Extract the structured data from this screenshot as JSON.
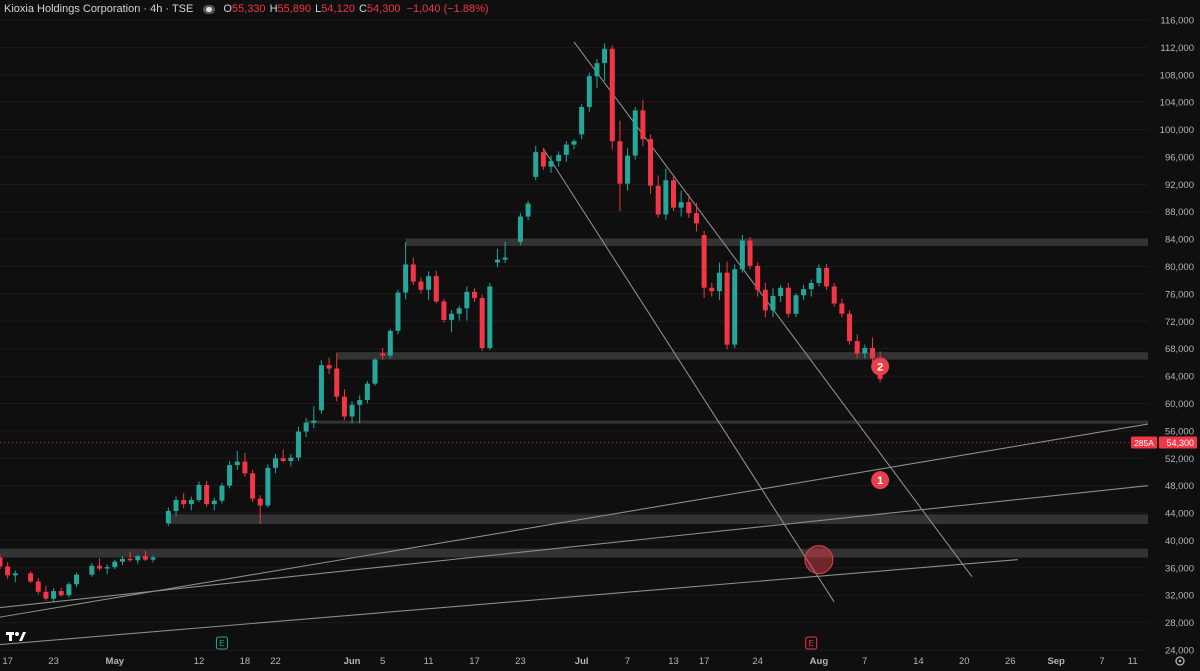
{
  "header": {
    "symbol": "Kioxia Holdings Corporation · 4h · TSE",
    "o_label": "O",
    "o_value": "55,330",
    "h_label": "H",
    "h_value": "55,890",
    "l_label": "L",
    "l_value": "54,120",
    "c_label": "C",
    "c_value": "54,300",
    "change": "−1,040 (−1.88%)"
  },
  "colors": {
    "background": "#0f0f0f",
    "up": "#26a69a",
    "down": "#f23645",
    "zone": "#3a3a3a",
    "trendline": "#8c8c8c",
    "marker": "#e8404b"
  },
  "price_tag": {
    "ticker": "285A",
    "price": "54,300"
  },
  "markers": [
    {
      "label": "2",
      "date": "2025-08-09",
      "price": 65400
    },
    {
      "label": "1",
      "date": "2025-08-09",
      "price": 48800
    }
  ],
  "logo_icon": "tradingview-logo-icon",
  "settings_icon": "gear-icon",
  "earnings_label": "E",
  "chart_data": {
    "type": "candlestick",
    "title": "Kioxia Holdings Corporation · 4h · TSE",
    "ylim": [
      24000,
      116000
    ],
    "xlim": [
      "2025-04-16",
      "2025-09-13"
    ],
    "y_ticks": [
      "24,000",
      "28,000",
      "32,000",
      "36,000",
      "40,000",
      "44,000",
      "48,000",
      "52,000",
      "56,000",
      "60,000",
      "64,000",
      "68,000",
      "72,000",
      "76,000",
      "80,000",
      "84,000",
      "88,000",
      "92,000",
      "96,000",
      "100,000",
      "104,000",
      "108,000",
      "112,000",
      "116,000"
    ],
    "x_ticks": [
      {
        "label": "17",
        "date": "2025-04-17"
      },
      {
        "label": "23",
        "date": "2025-04-23"
      },
      {
        "label": "May",
        "date": "2025-05-01"
      },
      {
        "label": "12",
        "date": "2025-05-12"
      },
      {
        "label": "18",
        "date": "2025-05-18"
      },
      {
        "label": "22",
        "date": "2025-05-22"
      },
      {
        "label": "Jun",
        "date": "2025-06-01"
      },
      {
        "label": "5",
        "date": "2025-06-05"
      },
      {
        "label": "11",
        "date": "2025-06-11"
      },
      {
        "label": "17",
        "date": "2025-06-17"
      },
      {
        "label": "23",
        "date": "2025-06-23"
      },
      {
        "label": "Jul",
        "date": "2025-07-01"
      },
      {
        "label": "7",
        "date": "2025-07-07"
      },
      {
        "label": "13",
        "date": "2025-07-13"
      },
      {
        "label": "17",
        "date": "2025-07-17"
      },
      {
        "label": "24",
        "date": "2025-07-24"
      },
      {
        "label": "Aug",
        "date": "2025-08-01"
      },
      {
        "label": "7",
        "date": "2025-08-07"
      },
      {
        "label": "14",
        "date": "2025-08-14"
      },
      {
        "label": "20",
        "date": "2025-08-20"
      },
      {
        "label": "26",
        "date": "2025-08-26"
      },
      {
        "label": "Sep",
        "date": "2025-09-01"
      },
      {
        "label": "7",
        "date": "2025-09-07"
      },
      {
        "label": "11",
        "date": "2025-09-11"
      }
    ],
    "earnings_dates": [
      "2025-05-15",
      "2025-07-31"
    ],
    "last_price": 54300,
    "candles": [
      [
        "2025-04-16",
        37500,
        38000,
        35800,
        36200
      ],
      [
        "2025-04-17",
        36200,
        36800,
        34400,
        34900
      ],
      [
        "2025-04-18",
        34900,
        35600,
        33900,
        35200
      ],
      [
        "2025-04-20",
        35200,
        35500,
        33800,
        34000
      ],
      [
        "2025-04-21",
        34000,
        34500,
        32100,
        32500
      ],
      [
        "2025-04-22",
        32500,
        33400,
        31200,
        31500
      ],
      [
        "2025-04-23",
        31500,
        33000,
        30900,
        32600
      ],
      [
        "2025-04-24",
        32600,
        33100,
        31800,
        32000
      ],
      [
        "2025-04-25",
        32000,
        33900,
        31700,
        33600
      ],
      [
        "2025-04-26",
        33600,
        35300,
        33200,
        35000
      ],
      [
        "2025-04-28",
        35000,
        36700,
        34700,
        36300
      ],
      [
        "2025-04-29",
        36300,
        37400,
        35600,
        35900
      ],
      [
        "2025-04-30",
        35900,
        36500,
        35100,
        36100
      ],
      [
        "2025-05-01",
        36100,
        37200,
        35800,
        36900
      ],
      [
        "2025-05-02",
        36900,
        37700,
        36400,
        37300
      ],
      [
        "2025-05-03",
        37300,
        38400,
        36900,
        37100
      ],
      [
        "2025-05-04",
        37100,
        37900,
        36600,
        37700
      ],
      [
        "2025-05-05",
        37700,
        38500,
        37000,
        37200
      ],
      [
        "2025-05-06",
        37200,
        37800,
        36800,
        37500
      ],
      [
        "2025-05-08",
        42500,
        44800,
        42100,
        44300
      ],
      [
        "2025-05-09",
        44300,
        46400,
        43600,
        45900
      ],
      [
        "2025-05-10",
        45900,
        46900,
        44700,
        45300
      ],
      [
        "2025-05-11",
        45300,
        46400,
        44400,
        45900
      ],
      [
        "2025-05-12",
        45900,
        48600,
        45600,
        48100
      ],
      [
        "2025-05-13",
        48100,
        48700,
        44900,
        45300
      ],
      [
        "2025-05-14",
        45300,
        46200,
        44400,
        45800
      ],
      [
        "2025-05-15",
        45800,
        48400,
        45400,
        48000
      ],
      [
        "2025-05-16",
        48000,
        51600,
        47600,
        51000
      ],
      [
        "2025-05-17",
        51000,
        53100,
        50300,
        51500
      ],
      [
        "2025-05-18",
        51500,
        52800,
        49300,
        49800
      ],
      [
        "2025-05-19",
        49800,
        50300,
        45600,
        46100
      ],
      [
        "2025-05-20",
        46100,
        46600,
        42400,
        45100
      ],
      [
        "2025-05-21",
        45100,
        51100,
        44800,
        50600
      ],
      [
        "2025-05-22",
        50600,
        52600,
        49800,
        52000
      ],
      [
        "2025-05-23",
        52000,
        53300,
        51400,
        51600
      ],
      [
        "2025-05-24",
        51600,
        52600,
        50800,
        52100
      ],
      [
        "2025-05-25",
        52100,
        56600,
        51600,
        55900
      ],
      [
        "2025-05-26",
        55900,
        57900,
        55100,
        57200
      ],
      [
        "2025-05-27",
        57200,
        59600,
        56400,
        57500
      ],
      [
        "2025-05-28",
        59000,
        66300,
        58500,
        65600
      ],
      [
        "2025-05-29",
        65600,
        66700,
        64300,
        65100
      ],
      [
        "2025-05-30",
        65100,
        67400,
        60300,
        61000
      ],
      [
        "2025-05-31",
        61000,
        62100,
        57600,
        58100
      ],
      [
        "2025-06-01",
        58100,
        60300,
        57100,
        59800
      ],
      [
        "2025-06-02",
        59800,
        61200,
        57100,
        60500
      ],
      [
        "2025-06-03",
        60500,
        63300,
        60000,
        62900
      ],
      [
        "2025-06-04",
        62900,
        66600,
        62600,
        66400
      ],
      [
        "2025-06-05",
        67300,
        68100,
        66400,
        67000
      ],
      [
        "2025-06-06",
        67000,
        70900,
        66600,
        70600
      ],
      [
        "2025-06-07",
        70600,
        76600,
        70100,
        76200
      ],
      [
        "2025-06-08",
        76200,
        83600,
        75200,
        80300
      ],
      [
        "2025-06-09",
        80300,
        81300,
        77300,
        77800
      ],
      [
        "2025-06-10",
        77800,
        78400,
        76100,
        76600
      ],
      [
        "2025-06-11",
        76600,
        79300,
        75100,
        78600
      ],
      [
        "2025-06-12",
        78600,
        79400,
        74600,
        74900
      ],
      [
        "2025-06-13",
        74900,
        75300,
        71800,
        72200
      ],
      [
        "2025-06-14",
        72200,
        73600,
        70400,
        73100
      ],
      [
        "2025-06-15",
        73100,
        74300,
        72100,
        73900
      ],
      [
        "2025-06-16",
        73900,
        77100,
        72100,
        76300
      ],
      [
        "2025-06-17",
        76300,
        76800,
        74800,
        75400
      ],
      [
        "2025-06-18",
        75400,
        75900,
        67700,
        68100
      ],
      [
        "2025-06-19",
        68100,
        77600,
        67800,
        77100
      ],
      [
        "2025-06-20",
        80600,
        82600,
        79900,
        81000
      ],
      [
        "2025-06-21",
        81000,
        83600,
        80500,
        81300
      ],
      [
        "2025-06-23",
        83600,
        87800,
        83100,
        87300
      ],
      [
        "2025-06-24",
        87300,
        89600,
        86800,
        89200
      ],
      [
        "2025-06-25",
        93100,
        97600,
        92600,
        96700
      ],
      [
        "2025-06-26",
        96700,
        97300,
        94100,
        94600
      ],
      [
        "2025-06-27",
        94600,
        96200,
        93700,
        95400
      ],
      [
        "2025-06-28",
        95400,
        96800,
        94600,
        96300
      ],
      [
        "2025-06-29",
        96300,
        98300,
        95300,
        97800
      ],
      [
        "2025-06-30",
        97800,
        98600,
        97100,
        98300
      ],
      [
        "2025-07-01",
        99300,
        103700,
        98600,
        103300
      ],
      [
        "2025-07-02",
        103300,
        108300,
        102600,
        107800
      ],
      [
        "2025-07-03",
        107800,
        110300,
        106100,
        109700
      ],
      [
        "2025-07-04",
        109700,
        112600,
        107100,
        111800
      ],
      [
        "2025-07-05",
        111800,
        112300,
        97100,
        98300
      ],
      [
        "2025-07-06",
        98300,
        101300,
        88100,
        92100
      ],
      [
        "2025-07-07",
        92100,
        97300,
        91100,
        96200
      ],
      [
        "2025-07-08",
        96200,
        103300,
        95600,
        102800
      ],
      [
        "2025-07-09",
        102800,
        104300,
        97600,
        98600
      ],
      [
        "2025-07-10",
        98600,
        99300,
        90600,
        91800
      ],
      [
        "2025-07-11",
        91800,
        93300,
        87100,
        87600
      ],
      [
        "2025-07-12",
        87600,
        94300,
        86800,
        92600
      ],
      [
        "2025-07-13",
        92600,
        93100,
        88100,
        88600
      ],
      [
        "2025-07-14",
        88600,
        91100,
        87300,
        89400
      ],
      [
        "2025-07-15",
        89400,
        90600,
        87100,
        87800
      ],
      [
        "2025-07-16",
        87800,
        89300,
        85100,
        86300
      ],
      [
        "2025-07-17",
        84600,
        85200,
        75400,
        76900
      ],
      [
        "2025-07-18",
        76900,
        77600,
        75600,
        76400
      ],
      [
        "2025-07-19",
        76400,
        80600,
        75100,
        79100
      ],
      [
        "2025-07-20",
        79100,
        80700,
        67900,
        68600
      ],
      [
        "2025-07-21",
        68600,
        80300,
        68100,
        79600
      ],
      [
        "2025-07-22",
        79600,
        84600,
        79100,
        83800
      ],
      [
        "2025-07-23",
        83800,
        84300,
        79600,
        80100
      ],
      [
        "2025-07-24",
        80100,
        80600,
        75600,
        76600
      ],
      [
        "2025-07-25",
        76600,
        77600,
        72600,
        73600
      ],
      [
        "2025-07-26",
        73600,
        76800,
        72600,
        75700
      ],
      [
        "2025-07-27",
        75700,
        77300,
        74800,
        76900
      ],
      [
        "2025-07-28",
        76900,
        77600,
        72600,
        73100
      ],
      [
        "2025-07-29",
        73100,
        76100,
        72600,
        75800
      ],
      [
        "2025-07-30",
        75800,
        77300,
        75100,
        76700
      ],
      [
        "2025-07-31",
        76700,
        78100,
        75600,
        77600
      ],
      [
        "2025-08-01",
        77600,
        80300,
        77100,
        79800
      ],
      [
        "2025-08-02",
        79800,
        80400,
        76600,
        77100
      ],
      [
        "2025-08-03",
        77100,
        77600,
        74100,
        74600
      ],
      [
        "2025-08-04",
        74600,
        75300,
        72600,
        73100
      ],
      [
        "2025-08-05",
        73100,
        73600,
        68600,
        69100
      ],
      [
        "2025-08-06",
        69100,
        70100,
        66600,
        67300
      ],
      [
        "2025-08-07",
        67300,
        68600,
        66600,
        68100
      ],
      [
        "2025-08-08",
        68100,
        69600,
        66100,
        66600
      ],
      [
        "2025-08-09",
        66600,
        67600,
        63100,
        63600
      ]
    ]
  }
}
